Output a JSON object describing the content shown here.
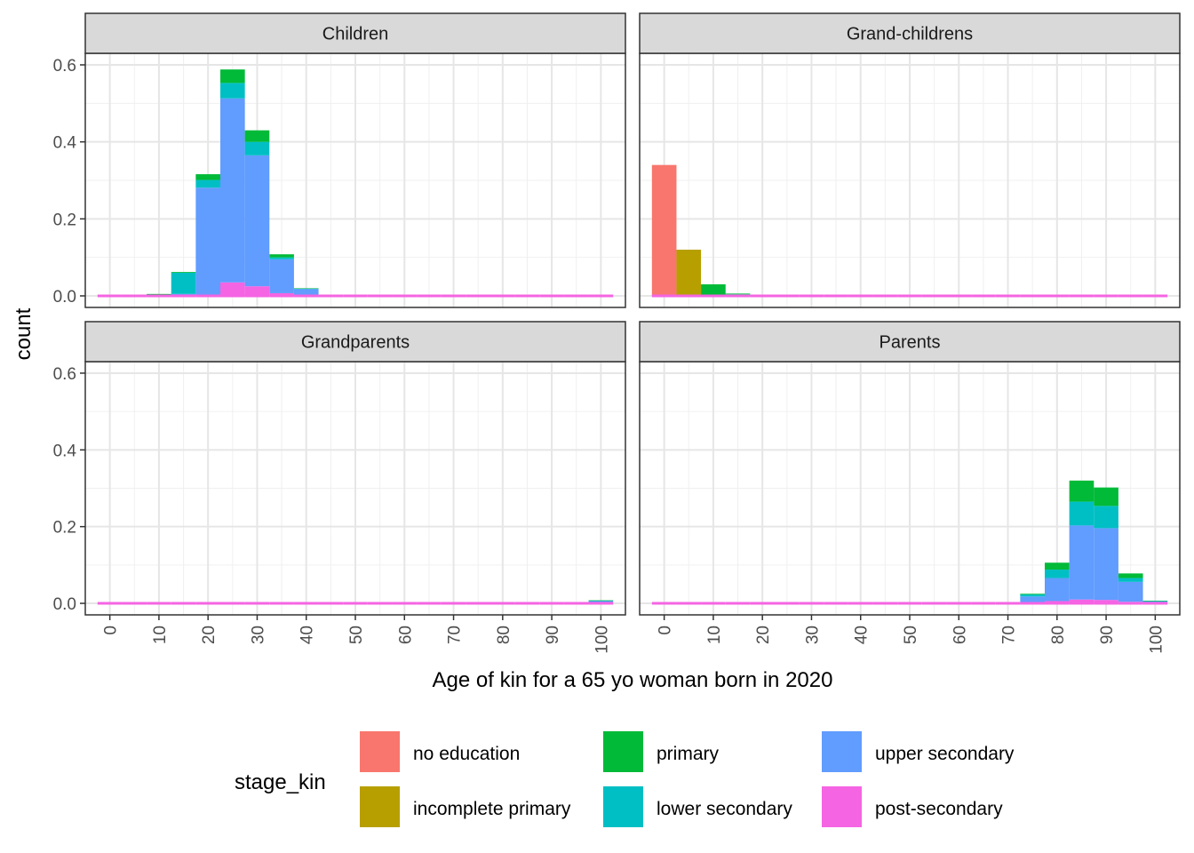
{
  "chart_data": {
    "type": "bar",
    "stacked": true,
    "facets": [
      "Children",
      "Grand-childrens",
      "Grandparents",
      "Parents"
    ],
    "xlabel": "Age of kin for a 65 yo woman born in 2020",
    "ylabel": "count",
    "xlim": [
      -5,
      105
    ],
    "ylim": [
      -0.03,
      0.63
    ],
    "x_ticks": [
      "0",
      "10",
      "20",
      "30",
      "40",
      "50",
      "60",
      "70",
      "80",
      "90",
      "100"
    ],
    "y_ticks": [
      "0.0",
      "0.2",
      "0.4",
      "0.6"
    ],
    "bin_width": 5,
    "bin_centers": [
      0,
      5,
      10,
      15,
      20,
      25,
      30,
      35,
      40,
      45,
      50,
      55,
      60,
      65,
      70,
      75,
      80,
      85,
      90,
      95,
      100
    ],
    "legend_title": "stage_kin",
    "legend_position": "bottom",
    "series": [
      {
        "name": "no education",
        "color": "#F8766D"
      },
      {
        "name": "incomplete primary",
        "color": "#B79F00"
      },
      {
        "name": "primary",
        "color": "#00BA38"
      },
      {
        "name": "lower secondary",
        "color": "#00BFC4"
      },
      {
        "name": "upper secondary",
        "color": "#619CFF"
      },
      {
        "name": "post-secondary",
        "color": "#F564E3"
      }
    ],
    "panels": [
      {
        "name": "Children",
        "values": {
          "no education": [
            0,
            0,
            0,
            0,
            0,
            0,
            0,
            0,
            0,
            0,
            0,
            0,
            0,
            0,
            0,
            0,
            0,
            0,
            0,
            0,
            0
          ],
          "incomplete primary": [
            0,
            0,
            0,
            0,
            0,
            0,
            0,
            0,
            0,
            0,
            0,
            0,
            0,
            0,
            0,
            0,
            0,
            0,
            0,
            0,
            0
          ],
          "primary": [
            0,
            0,
            0.002,
            0.002,
            0.015,
            0.035,
            0.03,
            0.008,
            0.001,
            0,
            0,
            0,
            0,
            0,
            0,
            0,
            0,
            0,
            0,
            0,
            0
          ],
          "lower secondary": [
            0,
            0,
            0.002,
            0.055,
            0.02,
            0.04,
            0.035,
            0.005,
            0.001,
            0,
            0,
            0,
            0,
            0,
            0,
            0,
            0,
            0,
            0,
            0,
            0
          ],
          "upper secondary": [
            0,
            0,
            0.001,
            0.003,
            0.278,
            0.478,
            0.34,
            0.088,
            0.016,
            0.001,
            0,
            0,
            0,
            0,
            0,
            0,
            0,
            0,
            0,
            0,
            0
          ],
          "post-secondary": [
            0,
            0,
            0,
            0.002,
            0.003,
            0.035,
            0.025,
            0.007,
            0.002,
            0,
            0,
            0,
            0,
            0,
            0,
            0,
            0,
            0,
            0,
            0,
            0
          ]
        }
      },
      {
        "name": "Grand-childrens",
        "values": {
          "no education": [
            0.34,
            0,
            0,
            0,
            0,
            0,
            0,
            0,
            0,
            0,
            0,
            0,
            0,
            0,
            0,
            0,
            0,
            0,
            0,
            0,
            0
          ],
          "incomplete primary": [
            0,
            0.12,
            0,
            0,
            0,
            0,
            0,
            0,
            0,
            0,
            0,
            0,
            0,
            0,
            0,
            0,
            0,
            0,
            0,
            0,
            0
          ],
          "primary": [
            0,
            0,
            0.028,
            0.002,
            0,
            0,
            0,
            0,
            0,
            0,
            0,
            0,
            0,
            0,
            0,
            0,
            0,
            0,
            0,
            0,
            0
          ],
          "lower secondary": [
            0,
            0,
            0.002,
            0.004,
            0,
            0,
            0,
            0,
            0,
            0,
            0,
            0,
            0,
            0,
            0,
            0,
            0,
            0,
            0,
            0,
            0
          ],
          "upper secondary": [
            0,
            0,
            0,
            0,
            0,
            0,
            0,
            0,
            0,
            0,
            0,
            0,
            0,
            0,
            0,
            0,
            0,
            0,
            0,
            0,
            0
          ],
          "post-secondary": [
            0,
            0,
            0,
            0,
            0,
            0,
            0,
            0,
            0,
            0,
            0,
            0,
            0,
            0,
            0,
            0,
            0,
            0,
            0,
            0,
            0
          ]
        }
      },
      {
        "name": "Grandparents",
        "values": {
          "no education": [
            0,
            0,
            0,
            0,
            0,
            0,
            0,
            0,
            0,
            0,
            0,
            0,
            0,
            0,
            0,
            0,
            0,
            0,
            0,
            0,
            0
          ],
          "incomplete primary": [
            0,
            0,
            0,
            0,
            0,
            0,
            0,
            0,
            0,
            0,
            0,
            0,
            0,
            0,
            0,
            0,
            0,
            0,
            0,
            0,
            0
          ],
          "primary": [
            0,
            0,
            0,
            0,
            0,
            0,
            0,
            0,
            0,
            0,
            0,
            0,
            0,
            0,
            0,
            0,
            0,
            0,
            0,
            0,
            0.001
          ],
          "lower secondary": [
            0,
            0,
            0,
            0,
            0,
            0,
            0,
            0,
            0,
            0,
            0,
            0,
            0,
            0,
            0,
            0,
            0,
            0,
            0,
            0,
            0.001
          ],
          "upper secondary": [
            0,
            0,
            0,
            0,
            0,
            0,
            0,
            0,
            0,
            0,
            0,
            0,
            0,
            0,
            0,
            0,
            0,
            0,
            0,
            0.001,
            0.005
          ],
          "post-secondary": [
            0,
            0,
            0,
            0,
            0,
            0,
            0,
            0,
            0,
            0,
            0,
            0,
            0,
            0,
            0,
            0,
            0,
            0,
            0,
            0,
            0.001
          ]
        }
      },
      {
        "name": "Parents",
        "values": {
          "no education": [
            0,
            0,
            0,
            0,
            0,
            0,
            0,
            0,
            0,
            0,
            0,
            0,
            0,
            0,
            0,
            0,
            0,
            0,
            0,
            0,
            0
          ],
          "incomplete primary": [
            0,
            0,
            0,
            0,
            0,
            0,
            0,
            0,
            0,
            0,
            0,
            0,
            0,
            0,
            0,
            0,
            0,
            0,
            0,
            0,
            0
          ],
          "primary": [
            0,
            0,
            0,
            0,
            0,
            0,
            0,
            0,
            0,
            0,
            0,
            0,
            0,
            0,
            0,
            0.002,
            0.018,
            0.055,
            0.048,
            0.012,
            0.001
          ],
          "lower secondary": [
            0,
            0,
            0,
            0,
            0,
            0,
            0,
            0,
            0,
            0,
            0,
            0,
            0,
            0,
            0,
            0.005,
            0.022,
            0.062,
            0.058,
            0.01,
            0.001
          ],
          "upper secondary": [
            0,
            0,
            0,
            0,
            0,
            0,
            0,
            0,
            0,
            0,
            0,
            0,
            0,
            0,
            0,
            0.016,
            0.06,
            0.193,
            0.187,
            0.052,
            0.004
          ],
          "post-secondary": [
            0,
            0,
            0,
            0,
            0,
            0,
            0,
            0,
            0,
            0,
            0,
            0,
            0,
            0,
            0,
            0.002,
            0.006,
            0.01,
            0.009,
            0.004,
            0.001
          ]
        }
      }
    ]
  }
}
